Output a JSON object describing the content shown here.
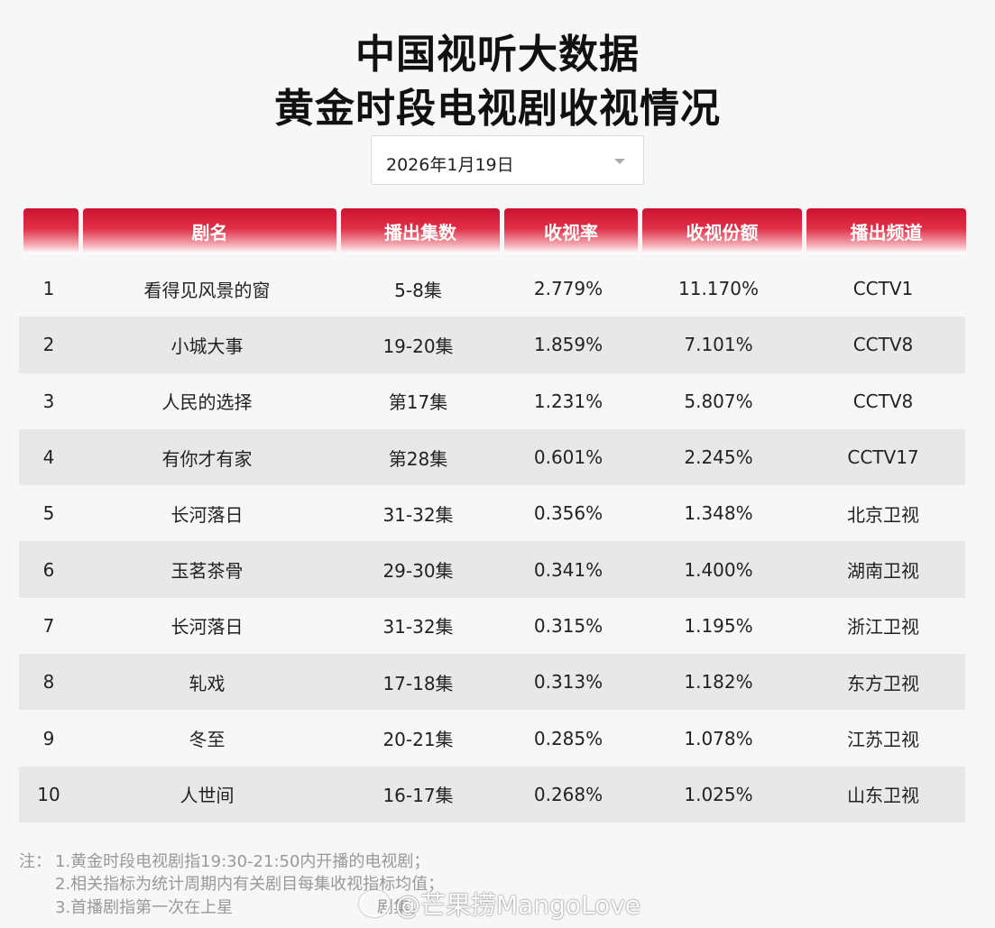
{
  "title": {
    "line1": "中国视听大数据",
    "line2": "黄金时段电视剧收视情况"
  },
  "date_select": {
    "value": "2026年1月19日"
  },
  "table": {
    "headers": [
      "",
      "剧名",
      "播出集数",
      "收视率",
      "收视份额",
      "播出频道"
    ],
    "rows": [
      {
        "rank": "1",
        "name": "看得见风景的窗",
        "episodes": "5-8集",
        "rating": "2.779%",
        "share": "11.170%",
        "channel": "CCTV1"
      },
      {
        "rank": "2",
        "name": "小城大事",
        "episodes": "19-20集",
        "rating": "1.859%",
        "share": "7.101%",
        "channel": "CCTV8"
      },
      {
        "rank": "3",
        "name": "人民的选择",
        "episodes": "第17集",
        "rating": "1.231%",
        "share": "5.807%",
        "channel": "CCTV8"
      },
      {
        "rank": "4",
        "name": "有你才有家",
        "episodes": "第28集",
        "rating": "0.601%",
        "share": "2.245%",
        "channel": "CCTV17"
      },
      {
        "rank": "5",
        "name": "长河落日",
        "episodes": "31-32集",
        "rating": "0.356%",
        "share": "1.348%",
        "channel": "北京卫视"
      },
      {
        "rank": "6",
        "name": "玉茗茶骨",
        "episodes": "29-30集",
        "rating": "0.341%",
        "share": "1.400%",
        "channel": "湖南卫视"
      },
      {
        "rank": "7",
        "name": "长河落日",
        "episodes": "31-32集",
        "rating": "0.315%",
        "share": "1.195%",
        "channel": "浙江卫视"
      },
      {
        "rank": "8",
        "name": "轧戏",
        "episodes": "17-18集",
        "rating": "0.313%",
        "share": "1.182%",
        "channel": "东方卫视"
      },
      {
        "rank": "9",
        "name": "冬至",
        "episodes": "20-21集",
        "rating": "0.285%",
        "share": "1.078%",
        "channel": "江苏卫视"
      },
      {
        "rank": "10",
        "name": "人世间",
        "episodes": "16-17集",
        "rating": "0.268%",
        "share": "1.025%",
        "channel": "山东卫视"
      }
    ]
  },
  "notes": {
    "prefix": "注：",
    "items": [
      "1.黄金时段电视剧指19:30-21:50内开播的电视剧；",
      "2.相关指标为统计周期内有关剧目每集收视指标均值；",
      "3.首播剧指第一次在上星"
    ],
    "item3_tail": "剧集。"
  },
  "watermark": {
    "text": "@芒果捞MangoLove"
  },
  "colors": {
    "header_red": "#cf1230",
    "stripe": "#e8e8e8",
    "background": "#f7f7f7"
  }
}
